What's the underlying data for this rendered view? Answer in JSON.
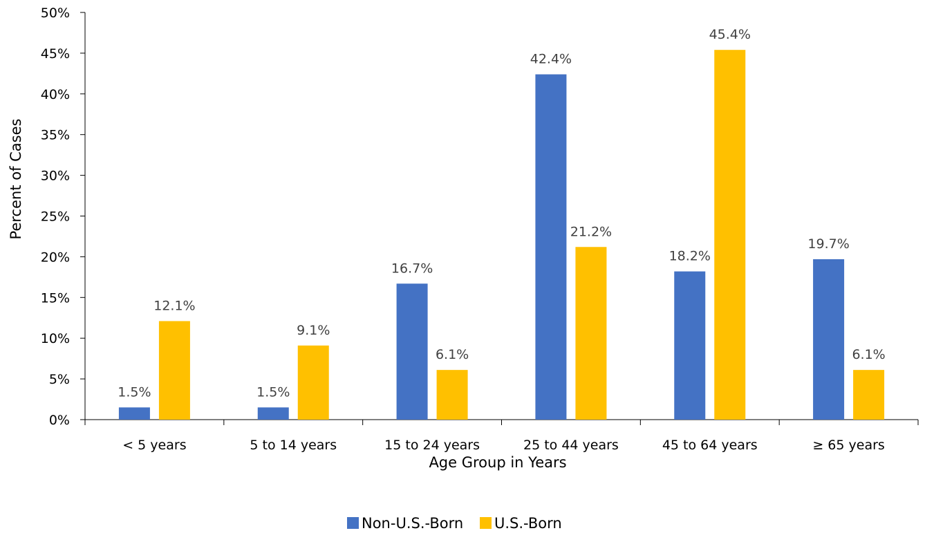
{
  "chart_data": {
    "type": "bar",
    "categories": [
      "< 5 years",
      "5 to 14 years",
      "15 to 24 years",
      "25 to 44 years",
      "45 to 64 years",
      "≥ 65 years"
    ],
    "series": [
      {
        "name": "Non-U.S.-Born",
        "color": "#4472C4",
        "values": [
          1.5,
          1.5,
          16.7,
          42.4,
          18.2,
          19.7
        ],
        "labels": [
          "1.5%",
          "1.5%",
          "16.7%",
          "42.4%",
          "18.2%",
          "19.7%"
        ]
      },
      {
        "name": "U.S.-Born",
        "color": "#FFC000",
        "values": [
          12.1,
          9.1,
          6.1,
          21.2,
          45.4,
          6.1
        ],
        "labels": [
          "12.1%",
          "9.1%",
          "6.1%",
          "21.2%",
          "45.4%",
          "6.1%"
        ]
      }
    ],
    "xlabel": "Age Group in Years",
    "ylabel": "Percent of Cases",
    "ylim": [
      0,
      50
    ],
    "yticks": [
      0,
      5,
      10,
      15,
      20,
      25,
      30,
      35,
      40,
      45,
      50
    ],
    "ytick_labels": [
      "0%",
      "5%",
      "10%",
      "15%",
      "20%",
      "25%",
      "30%",
      "35%",
      "40%",
      "45%",
      "50%"
    ],
    "grid": false,
    "legend_position": "bottom"
  }
}
